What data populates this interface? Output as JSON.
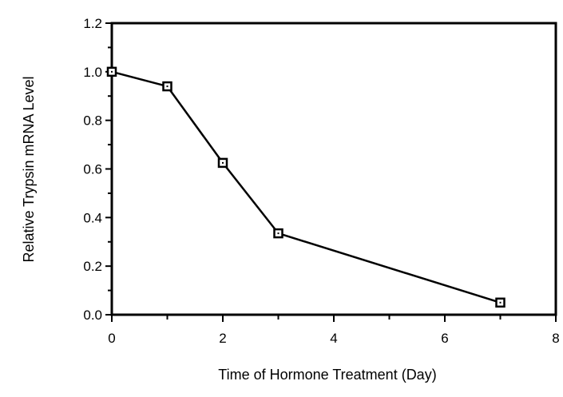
{
  "chart_data": {
    "type": "line",
    "title": "",
    "xlabel": "Time of Hormone Treatment (Day)",
    "ylabel": "Relative Trypsin mRNA Level",
    "xlim": [
      0,
      8
    ],
    "ylim": [
      0,
      1.2
    ],
    "xticks": [
      "0",
      "2",
      "4",
      "6",
      "8"
    ],
    "yticks": [
      "0.0",
      "0.2",
      "0.4",
      "0.6",
      "0.8",
      "1.0",
      "1.2"
    ],
    "grid": false,
    "marker": "open-square",
    "series": [
      {
        "x": [
          0,
          1,
          2,
          3,
          7
        ],
        "values": [
          1.0,
          0.94,
          0.625,
          0.335,
          0.05
        ]
      }
    ],
    "color": "#000000"
  }
}
